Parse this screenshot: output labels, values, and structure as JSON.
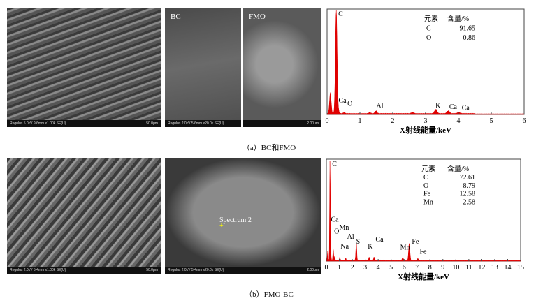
{
  "panels": {
    "a": {
      "caption": "（a）BC和FMO",
      "sem": [
        {
          "info": "Regulus 5.0kV 9.6mm x1.00k SE(U)",
          "scale": "50.0μm",
          "label": ""
        },
        {
          "info": "Regulus 2.0kV 5.6mm x20.0k SE(U)",
          "scale": "",
          "label": "BC"
        },
        {
          "info": "",
          "scale": "2.00μm",
          "label": "FMO"
        }
      ]
    },
    "b": {
      "caption": "（b）FMO-BC",
      "sem": [
        {
          "info": "Regulus 2.0kV 5.4mm x1.00k SE(U)",
          "scale": "50.0μm",
          "label": ""
        },
        {
          "info": "Regulus 2.0kV 5.4mm x20.0k SE(U)",
          "scale": "2.00μm",
          "label": "",
          "marker": "Spectrum 2"
        }
      ]
    }
  },
  "chart_data": [
    {
      "type": "line",
      "xlabel": "X射线能量/keV",
      "xlim": [
        0,
        6
      ],
      "xticks": [
        0,
        1,
        2,
        3,
        4,
        5,
        6
      ],
      "color": "#e00000",
      "peaks": [
        {
          "x": 0.1,
          "y": 20
        },
        {
          "x": 0.28,
          "y": 100
        },
        {
          "x": 0.34,
          "y": 3
        },
        {
          "x": 0.52,
          "y": 1
        },
        {
          "x": 1.49,
          "y": 2.5
        },
        {
          "x": 1.3,
          "y": 1
        },
        {
          "x": 2.6,
          "y": 1.2
        },
        {
          "x": 3.31,
          "y": 4
        },
        {
          "x": 3.69,
          "y": 2.5
        },
        {
          "x": 4.01,
          "y": 1
        }
      ],
      "peak_labels": [
        {
          "text": "C",
          "x": 0.28,
          "y": 100
        },
        {
          "text": "Ca",
          "x": 0.35,
          "y": 10
        },
        {
          "text": "O",
          "x": 0.62,
          "y": 7
        },
        {
          "text": "Al",
          "x": 1.5,
          "y": 5
        },
        {
          "text": "K",
          "x": 3.3,
          "y": 5
        },
        {
          "text": "Ca",
          "x": 3.72,
          "y": 4
        },
        {
          "text": "Ca",
          "x": 4.1,
          "y": 3
        }
      ],
      "table": {
        "header": [
          "元素",
          "含量/%"
        ],
        "rows": [
          [
            "C",
            "91.65"
          ],
          [
            "O",
            "0.86"
          ]
        ]
      }
    },
    {
      "type": "line",
      "xlabel": "X射线能量/keV",
      "xlim": [
        0,
        15
      ],
      "xticks": [
        0,
        1,
        2,
        3,
        4,
        5,
        6,
        7,
        8,
        9,
        10,
        11,
        12,
        13,
        14,
        15
      ],
      "color": "#e00000",
      "peaks": [
        {
          "x": 0.1,
          "y": 9
        },
        {
          "x": 0.28,
          "y": 100
        },
        {
          "x": 0.34,
          "y": 8
        },
        {
          "x": 0.53,
          "y": 12
        },
        {
          "x": 0.64,
          "y": 4
        },
        {
          "x": 1.04,
          "y": 3
        },
        {
          "x": 1.49,
          "y": 2
        },
        {
          "x": 2.31,
          "y": 18
        },
        {
          "x": 3.31,
          "y": 3
        },
        {
          "x": 3.69,
          "y": 3
        },
        {
          "x": 5.9,
          "y": 3
        },
        {
          "x": 6.4,
          "y": 17
        },
        {
          "x": 7.06,
          "y": 2
        }
      ],
      "peak_labels": [
        {
          "text": "C",
          "x": 0.28,
          "y": 100
        },
        {
          "text": "Ca",
          "x": 0.35,
          "y": 38
        },
        {
          "text": "Mn",
          "x": 1.0,
          "y": 30
        },
        {
          "text": "O",
          "x": 0.6,
          "y": 26
        },
        {
          "text": "Al",
          "x": 1.6,
          "y": 21
        },
        {
          "text": "S",
          "x": 2.3,
          "y": 16
        },
        {
          "text": "Na",
          "x": 1.1,
          "y": 11
        },
        {
          "text": "Ca",
          "x": 3.8,
          "y": 18
        },
        {
          "text": "K",
          "x": 3.2,
          "y": 11
        },
        {
          "text": "Mn",
          "x": 5.7,
          "y": 10
        },
        {
          "text": "Fe",
          "x": 6.6,
          "y": 16
        },
        {
          "text": "Fe",
          "x": 7.2,
          "y": 6
        }
      ],
      "table": {
        "header": [
          "元素",
          "含量/%"
        ],
        "rows": [
          [
            "C",
            "72.61"
          ],
          [
            "O",
            "8.79"
          ],
          [
            "Fe",
            "12.58"
          ],
          [
            "Mn",
            "2.58"
          ]
        ]
      }
    }
  ]
}
